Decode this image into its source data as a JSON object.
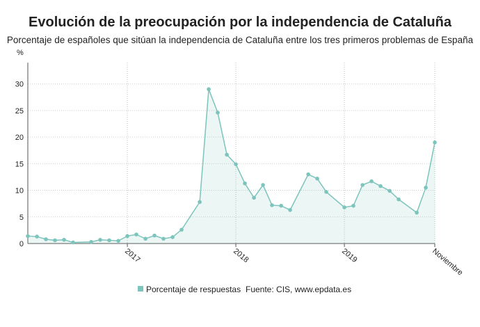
{
  "chart_data": {
    "type": "area",
    "title": "Evolución de la preocupación por la independencia de Cataluña",
    "subtitle": "Porcentaje de españoles que sitúan la independencia de Cataluña entre los tres primeros problemas de España",
    "y_label": "%",
    "source": "Fuente: CIS, www.epdata.es",
    "x": [
      2016.083,
      2016.167,
      2016.25,
      2016.333,
      2016.417,
      2016.5,
      2016.667,
      2016.75,
      2016.833,
      2016.917,
      2017.0,
      2017.083,
      2017.167,
      2017.25,
      2017.333,
      2017.417,
      2017.5,
      2017.667,
      2017.75,
      2017.833,
      2017.917,
      2018.0,
      2018.083,
      2018.167,
      2018.25,
      2018.333,
      2018.417,
      2018.5,
      2018.667,
      2018.75,
      2018.833,
      2019.0,
      2019.083,
      2019.167,
      2019.25,
      2019.333,
      2019.417,
      2019.5,
      2019.667,
      2019.75,
      2019.833
    ],
    "series": [
      {
        "name": "Porcentaje de respuestas",
        "color": "#7cc4bc",
        "values": [
          1.4,
          1.3,
          0.8,
          0.6,
          0.7,
          0.2,
          0.3,
          0.7,
          0.6,
          0.5,
          1.4,
          1.7,
          0.9,
          1.5,
          0.9,
          1.2,
          2.6,
          7.8,
          29,
          24.6,
          16.7,
          14.9,
          11.3,
          8.6,
          11.0,
          7.2,
          7.1,
          6.3,
          13.0,
          12.2,
          9.7,
          6.8,
          7.1,
          11.0,
          11.7,
          10.8,
          9.9,
          8.3,
          5.8,
          10.5,
          19.0
        ]
      }
    ],
    "xlim": [
      2016.083,
      2019.833
    ],
    "xticks": [
      2017,
      2018,
      2019,
      {
        "value": 2019.833,
        "label": "Noviembre"
      }
    ],
    "ylim": [
      0,
      34
    ],
    "yticks": [
      0,
      5,
      10,
      15,
      20,
      25,
      30
    ],
    "grid": true
  }
}
